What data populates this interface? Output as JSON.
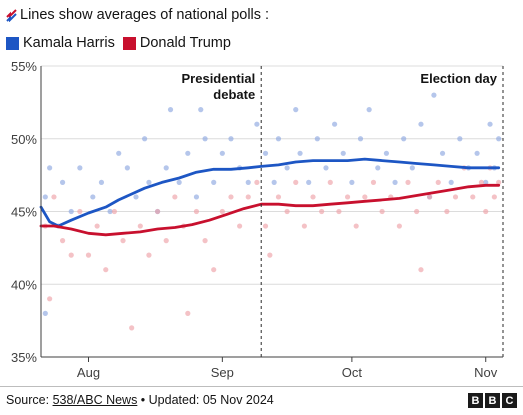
{
  "header": {
    "title": "Lines show averages of national polls :",
    "title_icon": "poll-tick-icon"
  },
  "legend": [
    {
      "name": "Kamala Harris",
      "color": "#1d56c4"
    },
    {
      "name": "Donald Trump",
      "color": "#c8102e"
    }
  ],
  "footer": {
    "source_prefix": "Source: ",
    "source_link": "538/ABC News",
    "updated": " • Updated: 05 Nov 2024",
    "logo": "BBC"
  },
  "chart_data": {
    "type": "line",
    "ylim": [
      35,
      55
    ],
    "yticks": [
      "35%",
      "40%",
      "45%",
      "50%",
      "55%"
    ],
    "xlim": [
      "2024-07-21",
      "2024-11-05"
    ],
    "xticks": [
      {
        "label": "Aug",
        "date": "2024-08-01"
      },
      {
        "label": "Sep",
        "date": "2024-09-01"
      },
      {
        "label": "Oct",
        "date": "2024-10-01"
      },
      {
        "label": "Nov",
        "date": "2024-11-01"
      }
    ],
    "annotations": [
      {
        "date": "2024-09-10",
        "lines": [
          "Presidential",
          "debate"
        ]
      },
      {
        "date": "2024-11-05",
        "lines": [
          "Election day"
        ]
      }
    ],
    "series": [
      {
        "name": "Kamala Harris",
        "color": "#1d56c4",
        "points": [
          [
            "2024-07-21",
            45.3
          ],
          [
            "2024-07-23",
            44.3
          ],
          [
            "2024-07-25",
            44.0
          ],
          [
            "2024-07-28",
            44.4
          ],
          [
            "2024-08-01",
            44.9
          ],
          [
            "2024-08-05",
            45.3
          ],
          [
            "2024-08-08",
            45.8
          ],
          [
            "2024-08-11",
            46.2
          ],
          [
            "2024-08-14",
            46.6
          ],
          [
            "2024-08-18",
            47.0
          ],
          [
            "2024-08-22",
            47.3
          ],
          [
            "2024-08-26",
            47.7
          ],
          [
            "2024-08-30",
            47.9
          ],
          [
            "2024-09-03",
            47.9
          ],
          [
            "2024-09-07",
            48.0
          ],
          [
            "2024-09-10",
            48.1
          ],
          [
            "2024-09-14",
            48.2
          ],
          [
            "2024-09-18",
            48.4
          ],
          [
            "2024-09-22",
            48.5
          ],
          [
            "2024-09-26",
            48.5
          ],
          [
            "2024-09-30",
            48.5
          ],
          [
            "2024-10-04",
            48.6
          ],
          [
            "2024-10-08",
            48.5
          ],
          [
            "2024-10-12",
            48.4
          ],
          [
            "2024-10-16",
            48.3
          ],
          [
            "2024-10-20",
            48.2
          ],
          [
            "2024-10-24",
            48.1
          ],
          [
            "2024-10-28",
            48.0
          ],
          [
            "2024-11-01",
            48.0
          ],
          [
            "2024-11-04",
            48.0
          ]
        ]
      },
      {
        "name": "Donald Trump",
        "color": "#c8102e",
        "points": [
          [
            "2024-07-21",
            44.0
          ],
          [
            "2024-07-24",
            44.0
          ],
          [
            "2024-07-28",
            43.8
          ],
          [
            "2024-08-01",
            43.5
          ],
          [
            "2024-08-05",
            43.4
          ],
          [
            "2024-08-09",
            43.5
          ],
          [
            "2024-08-13",
            43.6
          ],
          [
            "2024-08-17",
            43.8
          ],
          [
            "2024-08-21",
            43.9
          ],
          [
            "2024-08-25",
            44.1
          ],
          [
            "2024-08-29",
            44.4
          ],
          [
            "2024-09-02",
            44.8
          ],
          [
            "2024-09-06",
            45.2
          ],
          [
            "2024-09-10",
            45.5
          ],
          [
            "2024-09-14",
            45.5
          ],
          [
            "2024-09-18",
            45.4
          ],
          [
            "2024-09-22",
            45.4
          ],
          [
            "2024-09-26",
            45.5
          ],
          [
            "2024-09-30",
            45.6
          ],
          [
            "2024-10-04",
            45.7
          ],
          [
            "2024-10-08",
            45.8
          ],
          [
            "2024-10-12",
            45.9
          ],
          [
            "2024-10-16",
            46.1
          ],
          [
            "2024-10-20",
            46.3
          ],
          [
            "2024-10-24",
            46.5
          ],
          [
            "2024-10-28",
            46.7
          ],
          [
            "2024-11-01",
            46.8
          ],
          [
            "2024-11-04",
            46.8
          ]
        ]
      }
    ],
    "poll_dots": {
      "Kamala Harris": [
        [
          "2024-07-22",
          46
        ],
        [
          "2024-07-22",
          38
        ],
        [
          "2024-07-23",
          48
        ],
        [
          "2024-07-25",
          44
        ],
        [
          "2024-07-26",
          47
        ],
        [
          "2024-07-28",
          45
        ],
        [
          "2024-07-30",
          48
        ],
        [
          "2024-08-02",
          46
        ],
        [
          "2024-08-04",
          47
        ],
        [
          "2024-08-06",
          45
        ],
        [
          "2024-08-08",
          49
        ],
        [
          "2024-08-10",
          48
        ],
        [
          "2024-08-12",
          46
        ],
        [
          "2024-08-14",
          50
        ],
        [
          "2024-08-15",
          47
        ],
        [
          "2024-08-17",
          45
        ],
        [
          "2024-08-19",
          48
        ],
        [
          "2024-08-20",
          52
        ],
        [
          "2024-08-22",
          47
        ],
        [
          "2024-08-24",
          49
        ],
        [
          "2024-08-26",
          46
        ],
        [
          "2024-08-27",
          52
        ],
        [
          "2024-08-28",
          50
        ],
        [
          "2024-08-30",
          47
        ],
        [
          "2024-09-01",
          49
        ],
        [
          "2024-09-03",
          50
        ],
        [
          "2024-09-05",
          48
        ],
        [
          "2024-09-07",
          47
        ],
        [
          "2024-09-09",
          51
        ],
        [
          "2024-09-11",
          49
        ],
        [
          "2024-09-13",
          47
        ],
        [
          "2024-09-14",
          50
        ],
        [
          "2024-09-16",
          48
        ],
        [
          "2024-09-18",
          52
        ],
        [
          "2024-09-19",
          49
        ],
        [
          "2024-09-21",
          47
        ],
        [
          "2024-09-23",
          50
        ],
        [
          "2024-09-25",
          48
        ],
        [
          "2024-09-27",
          51
        ],
        [
          "2024-09-29",
          49
        ],
        [
          "2024-10-01",
          47
        ],
        [
          "2024-10-03",
          50
        ],
        [
          "2024-10-05",
          52
        ],
        [
          "2024-10-07",
          48
        ],
        [
          "2024-10-09",
          49
        ],
        [
          "2024-10-11",
          47
        ],
        [
          "2024-10-13",
          50
        ],
        [
          "2024-10-15",
          48
        ],
        [
          "2024-10-17",
          51
        ],
        [
          "2024-10-19",
          46
        ],
        [
          "2024-10-20",
          53
        ],
        [
          "2024-10-22",
          49
        ],
        [
          "2024-10-24",
          47
        ],
        [
          "2024-10-26",
          50
        ],
        [
          "2024-10-28",
          48
        ],
        [
          "2024-10-30",
          49
        ],
        [
          "2024-11-01",
          47
        ],
        [
          "2024-11-02",
          51
        ],
        [
          "2024-11-03",
          48
        ],
        [
          "2024-11-04",
          50
        ]
      ],
      "Donald Trump": [
        [
          "2024-07-22",
          44
        ],
        [
          "2024-07-23",
          39
        ],
        [
          "2024-07-24",
          46
        ],
        [
          "2024-07-26",
          43
        ],
        [
          "2024-07-28",
          42
        ],
        [
          "2024-07-30",
          45
        ],
        [
          "2024-08-01",
          42
        ],
        [
          "2024-08-03",
          44
        ],
        [
          "2024-08-05",
          41
        ],
        [
          "2024-08-07",
          45
        ],
        [
          "2024-08-09",
          43
        ],
        [
          "2024-08-11",
          37
        ],
        [
          "2024-08-13",
          44
        ],
        [
          "2024-08-15",
          42
        ],
        [
          "2024-08-17",
          45
        ],
        [
          "2024-08-19",
          43
        ],
        [
          "2024-08-21",
          46
        ],
        [
          "2024-08-23",
          44
        ],
        [
          "2024-08-24",
          38
        ],
        [
          "2024-08-26",
          45
        ],
        [
          "2024-08-28",
          43
        ],
        [
          "2024-08-30",
          41
        ],
        [
          "2024-09-01",
          45
        ],
        [
          "2024-09-03",
          46
        ],
        [
          "2024-09-05",
          44
        ],
        [
          "2024-09-07",
          46
        ],
        [
          "2024-09-09",
          47
        ],
        [
          "2024-09-11",
          44
        ],
        [
          "2024-09-12",
          42
        ],
        [
          "2024-09-14",
          46
        ],
        [
          "2024-09-16",
          45
        ],
        [
          "2024-09-18",
          47
        ],
        [
          "2024-09-20",
          44
        ],
        [
          "2024-09-22",
          46
        ],
        [
          "2024-09-24",
          45
        ],
        [
          "2024-09-26",
          47
        ],
        [
          "2024-09-28",
          45
        ],
        [
          "2024-09-30",
          46
        ],
        [
          "2024-10-02",
          44
        ],
        [
          "2024-10-04",
          46
        ],
        [
          "2024-10-06",
          47
        ],
        [
          "2024-10-08",
          45
        ],
        [
          "2024-10-10",
          46
        ],
        [
          "2024-10-12",
          44
        ],
        [
          "2024-10-14",
          47
        ],
        [
          "2024-10-16",
          45
        ],
        [
          "2024-10-17",
          41
        ],
        [
          "2024-10-19",
          46
        ],
        [
          "2024-10-21",
          47
        ],
        [
          "2024-10-23",
          45
        ],
        [
          "2024-10-25",
          46
        ],
        [
          "2024-10-27",
          48
        ],
        [
          "2024-10-29",
          46
        ],
        [
          "2024-10-31",
          47
        ],
        [
          "2024-11-01",
          45
        ],
        [
          "2024-11-02",
          48
        ],
        [
          "2024-11-03",
          46
        ],
        [
          "2024-11-04",
          47
        ]
      ]
    }
  }
}
